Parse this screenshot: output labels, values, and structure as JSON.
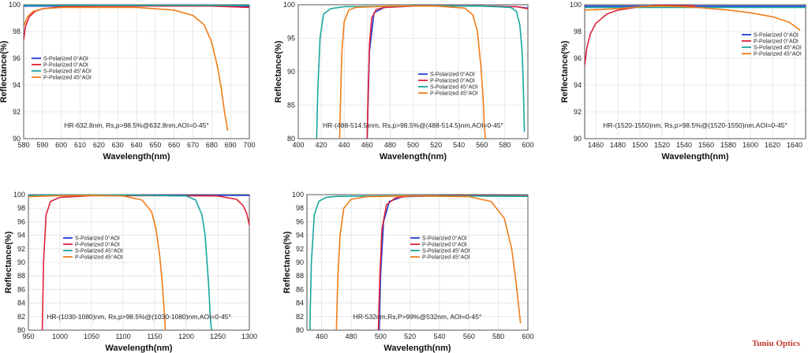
{
  "brand": "Tuniu Optics",
  "colors": {
    "s0": "#1f3fd6",
    "p0": "#e0203a",
    "s45": "#1aa6a0",
    "p45": "#f07d1a"
  },
  "chart_data": [
    {
      "type": "line",
      "annotation": "HR-632.8nm, Rs,p>98.5%@632.8nm,AOI=0-45°",
      "xlabel": "Wavelength(nm)",
      "ylabel": "Reflectance(%)",
      "xlim": [
        580,
        700
      ],
      "ylim": [
        90,
        100
      ],
      "xticks": [
        580,
        590,
        600,
        610,
        620,
        630,
        640,
        650,
        660,
        670,
        680,
        690,
        700
      ],
      "yticks": [
        90,
        92,
        94,
        96,
        98,
        100
      ],
      "legend": "center-left",
      "series": [
        {
          "name": "S-Polarized 0°AOI",
          "color": "s0",
          "x": [
            580,
            590,
            600,
            650,
            700
          ],
          "y": [
            99.9,
            99.9,
            99.9,
            99.9,
            99.9
          ]
        },
        {
          "name": "P-Polarized 0°AOI",
          "color": "p0",
          "x": [
            580,
            581,
            583,
            586,
            590,
            600,
            620,
            650,
            680,
            700
          ],
          "y": [
            97.4,
            98.4,
            99.1,
            99.5,
            99.7,
            99.85,
            99.9,
            99.9,
            99.9,
            99.8
          ]
        },
        {
          "name": "S-Polarized 45°AOI",
          "color": "s45",
          "x": [
            580,
            600,
            650,
            700
          ],
          "y": [
            99.95,
            99.95,
            99.95,
            99.95
          ]
        },
        {
          "name": "P-Polarized 45°AOI",
          "color": "p45",
          "x": [
            580,
            582,
            585,
            590,
            600,
            620,
            640,
            660,
            670,
            676,
            680,
            683,
            685,
            687,
            688.5
          ],
          "y": [
            98.4,
            99.1,
            99.5,
            99.7,
            99.8,
            99.8,
            99.8,
            99.6,
            99.2,
            98.5,
            97.2,
            95.4,
            93.8,
            91.8,
            90.6
          ]
        }
      ]
    },
    {
      "type": "line",
      "annotation": "HR-(488-514.5)nm, Rs,p>98.5%@(488-514.5)nm,AOI=0-45°",
      "xlabel": "Wavelength(nm)",
      "ylabel": "Reflectance(%)",
      "xlim": [
        400,
        600
      ],
      "ylim": [
        80,
        100
      ],
      "xticks": [
        400,
        420,
        440,
        460,
        480,
        500,
        520,
        540,
        560,
        580,
        600
      ],
      "yticks": [
        80,
        85,
        90,
        95,
        100
      ],
      "legend": "center",
      "series": [
        {
          "name": "S-Polarized 0°AOI",
          "color": "s0",
          "x": [
            460,
            462,
            466,
            475,
            500,
            560,
            590,
            600
          ],
          "y": [
            80,
            93,
            98.8,
            99.6,
            99.8,
            99.8,
            99.7,
            99.5
          ]
        },
        {
          "name": "P-Polarized 0°AOI",
          "color": "p0",
          "x": [
            460,
            461,
            462,
            464,
            468,
            475,
            500,
            560,
            590,
            600
          ],
          "y": [
            80,
            88,
            94,
            98,
            99.3,
            99.6,
            99.8,
            99.8,
            99.7,
            99.4
          ]
        },
        {
          "name": "S-Polarized 45°AOI",
          "color": "s45",
          "x": [
            416,
            417,
            419,
            422,
            428,
            440,
            500,
            560,
            585,
            590,
            593,
            595,
            596,
            597
          ],
          "y": [
            80,
            87,
            95,
            98.6,
            99.4,
            99.7,
            99.8,
            99.8,
            99.6,
            99,
            97,
            93,
            88,
            81
          ]
        },
        {
          "name": "P-Polarized 45°AOI",
          "color": "p45",
          "x": [
            436,
            437,
            438,
            440,
            444,
            450,
            480,
            520,
            545,
            552,
            556,
            559,
            561,
            562,
            563
          ],
          "y": [
            80,
            87,
            93,
            97.5,
            99.2,
            99.6,
            99.8,
            99.8,
            99.5,
            98.5,
            96,
            91,
            86,
            82,
            80
          ]
        }
      ]
    },
    {
      "type": "line",
      "annotation": "HR-(1520-1550)nm, Rs,p>98.5%@(1520-1550)nm,AOI=0-45°",
      "xlabel": "Wavelength(nm)",
      "ylabel": "Reflectance(%)",
      "xlim": [
        1450,
        1650
      ],
      "ylim": [
        90,
        100
      ],
      "xticks": [
        1460,
        1480,
        1500,
        1520,
        1540,
        1560,
        1580,
        1600,
        1620,
        1640
      ],
      "yticks": [
        90,
        92,
        94,
        96,
        98,
        100
      ],
      "legend": "top-right",
      "series": [
        {
          "name": "S-Polarized 0°AOI",
          "color": "s0",
          "x": [
            1450,
            1550,
            1650
          ],
          "y": [
            99.9,
            99.9,
            99.9
          ]
        },
        {
          "name": "P-Polarized 0°AOI",
          "color": "p0",
          "x": [
            1450,
            1452,
            1455,
            1460,
            1470,
            1480,
            1500,
            1520,
            1550
          ],
          "y": [
            95.5,
            96.8,
            97.8,
            98.6,
            99.3,
            99.6,
            99.85,
            99.95,
            99.9
          ]
        },
        {
          "name": "S-Polarized 45°AOI",
          "color": "s45",
          "x": [
            1450,
            1550,
            1650
          ],
          "y": [
            99.8,
            99.8,
            99.8
          ]
        },
        {
          "name": "P-Polarized 45°AOI",
          "color": "p45",
          "x": [
            1450,
            1480,
            1500,
            1520,
            1540,
            1560,
            1580,
            1600,
            1620,
            1635,
            1645
          ],
          "y": [
            99.6,
            99.7,
            99.85,
            99.9,
            99.85,
            99.75,
            99.6,
            99.4,
            99.1,
            98.7,
            98.1
          ]
        }
      ]
    },
    {
      "type": "line",
      "annotation": "HR-(1030-1080)nm, Rs,p>98.5%@(1030-1080)nm,AOI=0-45°",
      "xlabel": "Wavelength(nm)",
      "ylabel": "Reflectance(%)",
      "xlim": [
        950,
        1300
      ],
      "ylim": [
        80,
        100
      ],
      "xticks": [
        950,
        1000,
        1050,
        1100,
        1150,
        1200,
        1250,
        1300
      ],
      "yticks": [
        80,
        82,
        84,
        86,
        88,
        90,
        92,
        94,
        96,
        98,
        100
      ],
      "legend": "center-left",
      "series": [
        {
          "name": "S-Polarized 0°AOI",
          "color": "s0",
          "x": [
            950,
            1100,
            1300
          ],
          "y": [
            99.9,
            99.9,
            99.9
          ]
        },
        {
          "name": "P-Polarized 0°AOI",
          "color": "p0",
          "x": [
            972,
            974,
            978,
            985,
            1000,
            1050,
            1150,
            1250,
            1280,
            1290,
            1296,
            1300
          ],
          "y": [
            80,
            90,
            97,
            99,
            99.6,
            99.85,
            99.85,
            99.8,
            99.3,
            98.4,
            97.2,
            95.5
          ]
        },
        {
          "name": "S-Polarized 45°AOI",
          "color": "s45",
          "x": [
            950,
            1000,
            1100,
            1200,
            1215,
            1225,
            1230,
            1233,
            1236,
            1238,
            1240
          ],
          "y": [
            99.9,
            99.95,
            99.95,
            99.8,
            99.2,
            97,
            94,
            90,
            86,
            82,
            80
          ]
        },
        {
          "name": "P-Polarized 45°AOI",
          "color": "p45",
          "x": [
            950,
            1000,
            1050,
            1100,
            1130,
            1145,
            1152,
            1158,
            1162,
            1165,
            1167
          ],
          "y": [
            99.7,
            99.85,
            99.9,
            99.8,
            99.2,
            97.5,
            95,
            91,
            87,
            83,
            80
          ]
        }
      ]
    },
    {
      "type": "line",
      "annotation": "HR-532nm,Rs,P>99%@532nm, AOI=0-45°",
      "xlabel": "Wavelength(nm)",
      "ylabel": "Reflectance(%)",
      "xlim": [
        450,
        600
      ],
      "ylim": [
        80,
        100
      ],
      "xticks": [
        460,
        480,
        500,
        520,
        540,
        560,
        580,
        600
      ],
      "yticks": [
        80,
        82,
        84,
        86,
        88,
        90,
        92,
        94,
        96,
        98,
        100
      ],
      "legend": "center-right",
      "series": [
        {
          "name": "S-Polarized 0°AOI",
          "color": "s0",
          "x": [
            499,
            500,
            502,
            506,
            515,
            550,
            600
          ],
          "y": [
            80,
            88,
            96,
            99,
            99.7,
            99.85,
            99.8
          ]
        },
        {
          "name": "P-Polarized 0°AOI",
          "color": "p0",
          "x": [
            498.5,
            499.5,
            501,
            504,
            510,
            520,
            560,
            600
          ],
          "y": [
            80,
            88,
            95,
            98.5,
            99.5,
            99.8,
            99.85,
            99.8
          ]
        },
        {
          "name": "S-Polarized 45°AOI",
          "color": "s45",
          "x": [
            452,
            453,
            455,
            458,
            463,
            470,
            500,
            550,
            600
          ],
          "y": [
            80,
            90,
            97,
            99,
            99.6,
            99.75,
            99.8,
            99.8,
            99.75
          ]
        },
        {
          "name": "P-Polarized 45°AOI",
          "color": "p45",
          "x": [
            470,
            471,
            472.5,
            475,
            480,
            490,
            520,
            560,
            575,
            584,
            589,
            592,
            594,
            595
          ],
          "y": [
            80,
            88,
            94,
            98,
            99.3,
            99.7,
            99.8,
            99.7,
            99,
            96.5,
            92,
            87,
            83,
            81
          ]
        }
      ]
    }
  ]
}
